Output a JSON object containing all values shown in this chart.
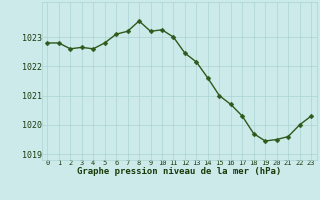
{
  "x": [
    0,
    1,
    2,
    3,
    4,
    5,
    6,
    7,
    8,
    9,
    10,
    11,
    12,
    13,
    14,
    15,
    16,
    17,
    18,
    19,
    20,
    21,
    22,
    23
  ],
  "y": [
    1022.8,
    1022.8,
    1022.6,
    1022.65,
    1022.6,
    1022.8,
    1023.1,
    1023.2,
    1023.55,
    1023.2,
    1023.25,
    1023.0,
    1022.45,
    1022.15,
    1021.6,
    1021.0,
    1020.7,
    1020.3,
    1019.7,
    1019.45,
    1019.5,
    1019.6,
    1020.0,
    1020.3
  ],
  "line_color": "#2d5a1b",
  "marker_color": "#2d5a1b",
  "bg_color": "#cceaea",
  "grid_color": "#aad4d4",
  "xlabel": "Graphe pression niveau de la mer (hPa)",
  "xlabel_color": "#1a3a0a",
  "tick_color": "#1a3a0a",
  "ylim": [
    1018.8,
    1024.2
  ],
  "xlim": [
    -0.5,
    23.5
  ],
  "yticks": [
    1019,
    1020,
    1021,
    1022,
    1023
  ],
  "xticks": [
    0,
    1,
    2,
    3,
    4,
    5,
    6,
    7,
    8,
    9,
    10,
    11,
    12,
    13,
    14,
    15,
    16,
    17,
    18,
    19,
    20,
    21,
    22,
    23
  ],
  "linewidth": 1.0,
  "markersize": 2.5
}
